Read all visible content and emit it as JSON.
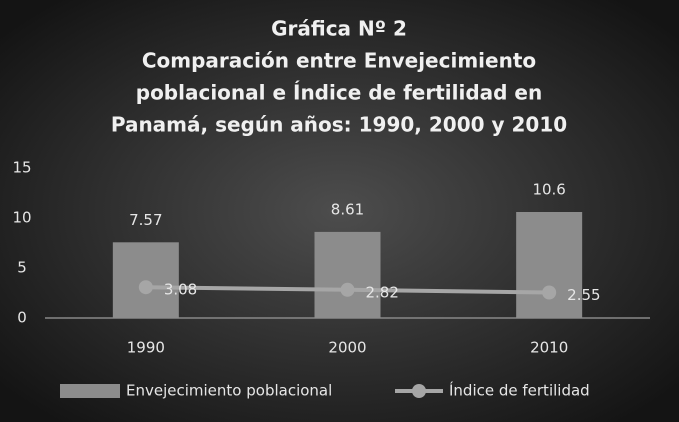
{
  "chart_data": {
    "type": "combo",
    "title": [
      "Gráfica Nº 2",
      "Comparación entre Envejecimiento",
      "poblacional e Índice de fertilidad en",
      "Panamá, según años: 1990, 2000 y 2010"
    ],
    "categories": [
      "1990",
      "2000",
      "2010"
    ],
    "series": [
      {
        "name": "Envejecimiento poblacional",
        "type": "bar",
        "color": "#8c8c8c",
        "values": [
          7.57,
          8.61,
          10.6
        ]
      },
      {
        "name": "Índice de fertilidad",
        "type": "line",
        "color": "#a6a6a6",
        "values": [
          3.08,
          2.82,
          2.55
        ]
      }
    ],
    "ylim": [
      0,
      15
    ],
    "yticks": [
      0,
      5,
      10,
      15
    ],
    "grid": false,
    "legend": "bottom"
  }
}
